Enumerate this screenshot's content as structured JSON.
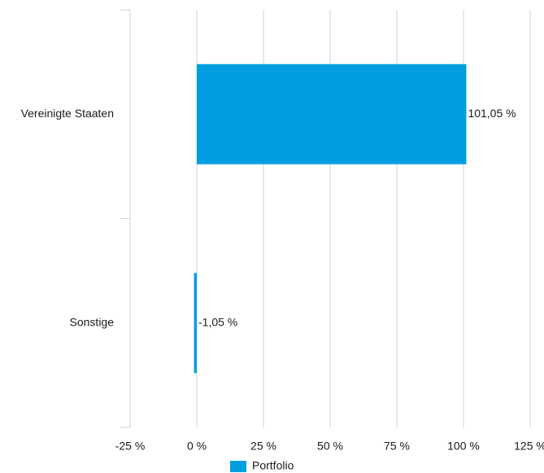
{
  "chart_data": {
    "type": "barh",
    "categories": [
      "Vereinigte Staaten",
      "Sonstige"
    ],
    "series": [
      {
        "name": "Portfolio",
        "color": "#009ee0",
        "values": [
          101.05,
          -1.05
        ],
        "value_labels": [
          "101,05 %",
          "-1,05 %"
        ]
      }
    ],
    "xlim": [
      -25,
      125
    ],
    "xticks": [
      {
        "value": -25,
        "label": "-25 %"
      },
      {
        "value": 0,
        "label": "0 %"
      },
      {
        "value": 25,
        "label": "25 %"
      },
      {
        "value": 50,
        "label": "50 %"
      },
      {
        "value": 75,
        "label": "75 %"
      },
      {
        "value": 100,
        "label": "100 %"
      },
      {
        "value": 125,
        "label": "125 %"
      }
    ],
    "grid": true,
    "legend": "bottom"
  }
}
